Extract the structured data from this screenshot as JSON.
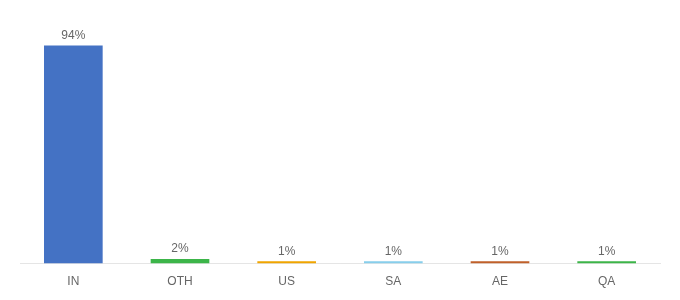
{
  "chart_data": {
    "type": "bar",
    "categories": [
      "IN",
      "OTH",
      "US",
      "SA",
      "AE",
      "QA"
    ],
    "values": [
      94,
      2,
      1,
      1,
      1,
      1
    ],
    "value_labels": [
      "94%",
      "2%",
      "1%",
      "1%",
      "1%",
      "1%"
    ],
    "data_labels": true,
    "colors": [
      "#4472c4",
      "#3cb549",
      "#f0a500",
      "#87ceeb",
      "#c0602a",
      "#3cb549"
    ],
    "ylim": [
      0,
      105
    ],
    "grid": false,
    "tick_labels": "x"
  }
}
